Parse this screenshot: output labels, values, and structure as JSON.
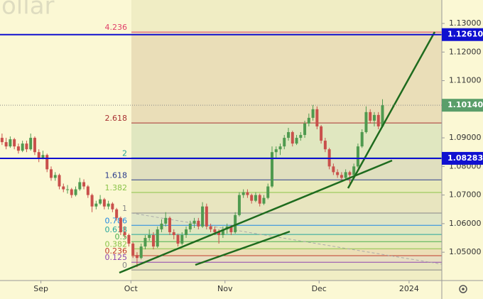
{
  "chart_data": {
    "type": "candlestick",
    "watermark": "ollar",
    "up_color": "#4f9a4f",
    "down_color": "#c9504b",
    "xlim": [
      0,
      108
    ],
    "xticks": [
      {
        "value": 10,
        "label": "Sep"
      },
      {
        "value": 32,
        "label": "Oct"
      },
      {
        "value": 55,
        "label": "Nov"
      },
      {
        "value": 78,
        "label": "Dec"
      },
      {
        "value": 100,
        "label": "2024"
      }
    ],
    "ylim": [
      1.0401,
      1.1382
    ],
    "yticks": [
      {
        "value": 1.05,
        "label": "1.05000"
      },
      {
        "value": 1.06,
        "label": "1.06000"
      },
      {
        "value": 1.07,
        "label": "1.07000"
      },
      {
        "value": 1.08,
        "label": "1.08000"
      },
      {
        "value": 1.09,
        "label": "1.09000"
      },
      {
        "value": 1.1,
        "label": "1.10000"
      },
      {
        "value": 1.11,
        "label": "1.11000"
      },
      {
        "value": 1.12,
        "label": "1.12000"
      },
      {
        "value": 1.13,
        "label": "1.13000"
      }
    ],
    "candles": [
      [
        1.09,
        1.0915,
        1.0875,
        1.0885
      ],
      [
        1.0885,
        1.09,
        1.086,
        1.087
      ],
      [
        1.087,
        1.0905,
        1.0865,
        1.0895
      ],
      [
        1.0895,
        1.09,
        1.086,
        1.087
      ],
      [
        1.087,
        1.088,
        1.0845,
        1.0855
      ],
      [
        1.0855,
        1.089,
        1.085,
        1.088
      ],
      [
        1.088,
        1.089,
        1.085,
        1.086
      ],
      [
        1.086,
        1.0915,
        1.0855,
        1.09
      ],
      [
        1.09,
        1.0905,
        1.084,
        1.085
      ],
      [
        1.085,
        1.086,
        1.0815,
        1.083
      ],
      [
        1.083,
        1.0855,
        1.0825,
        1.084
      ],
      [
        1.084,
        1.0845,
        1.078,
        1.079
      ],
      [
        1.079,
        1.08,
        1.075,
        1.076
      ],
      [
        1.076,
        1.078,
        1.075,
        1.077
      ],
      [
        1.077,
        1.0775,
        1.072,
        1.073
      ],
      [
        1.073,
        1.074,
        1.071,
        1.072
      ],
      [
        1.072,
        1.0735,
        1.0705,
        1.072
      ],
      [
        1.072,
        1.0725,
        1.069,
        1.07
      ],
      [
        1.07,
        1.073,
        1.0695,
        1.072
      ],
      [
        1.072,
        1.076,
        1.0715,
        1.0745
      ],
      [
        1.0745,
        1.0755,
        1.072,
        1.073
      ],
      [
        1.073,
        1.0735,
        1.069,
        1.07
      ],
      [
        1.07,
        1.0705,
        1.064,
        1.066
      ],
      [
        1.066,
        1.068,
        1.065,
        1.067
      ],
      [
        1.067,
        1.07,
        1.0665,
        1.0685
      ],
      [
        1.0685,
        1.069,
        1.065,
        1.066
      ],
      [
        1.066,
        1.068,
        1.065,
        1.067
      ],
      [
        1.067,
        1.0675,
        1.064,
        1.065
      ],
      [
        1.065,
        1.0655,
        1.061,
        1.062
      ],
      [
        1.062,
        1.0625,
        1.056,
        1.057
      ],
      [
        1.057,
        1.059,
        1.055,
        1.056
      ],
      [
        1.056,
        1.0565,
        1.052,
        1.053
      ],
      [
        1.053,
        1.0535,
        1.048,
        1.049
      ],
      [
        1.049,
        1.05,
        1.0448,
        1.048
      ],
      [
        1.048,
        1.053,
        1.0475,
        1.052
      ],
      [
        1.052,
        1.056,
        1.051,
        1.055
      ],
      [
        1.055,
        1.058,
        1.054,
        1.056
      ],
      [
        1.056,
        1.057,
        1.051,
        1.052
      ],
      [
        1.052,
        1.059,
        1.0515,
        1.058
      ],
      [
        1.058,
        1.0615,
        1.057,
        1.06
      ],
      [
        1.06,
        1.064,
        1.059,
        1.062
      ],
      [
        1.062,
        1.0625,
        1.056,
        1.057
      ],
      [
        1.057,
        1.058,
        1.0545,
        1.056
      ],
      [
        1.056,
        1.0565,
        1.052,
        1.053
      ],
      [
        1.053,
        1.057,
        1.0525,
        1.056
      ],
      [
        1.056,
        1.059,
        1.055,
        1.058
      ],
      [
        1.058,
        1.061,
        1.057,
        1.06
      ],
      [
        1.06,
        1.062,
        1.0585,
        1.061
      ],
      [
        1.061,
        1.062,
        1.058,
        1.059
      ],
      [
        1.059,
        1.0675,
        1.0585,
        1.066
      ],
      [
        1.066,
        1.067,
        1.058,
        1.059
      ],
      [
        1.059,
        1.06,
        1.057,
        1.058
      ],
      [
        1.058,
        1.059,
        1.056,
        1.057
      ],
      [
        1.057,
        1.058,
        1.053,
        1.056
      ],
      [
        1.056,
        1.059,
        1.055,
        1.058
      ],
      [
        1.058,
        1.06,
        1.0565,
        1.059
      ],
      [
        1.059,
        1.0595,
        1.056,
        1.057
      ],
      [
        1.057,
        1.064,
        1.0565,
        1.063
      ],
      [
        1.063,
        1.071,
        1.0625,
        1.07
      ],
      [
        1.07,
        1.072,
        1.069,
        1.071
      ],
      [
        1.071,
        1.072,
        1.069,
        1.07
      ],
      [
        1.07,
        1.0705,
        1.067,
        1.068
      ],
      [
        1.068,
        1.071,
        1.0675,
        1.07
      ],
      [
        1.07,
        1.0705,
        1.066,
        1.067
      ],
      [
        1.067,
        1.07,
        1.0665,
        1.069
      ],
      [
        1.069,
        1.074,
        1.0685,
        1.073
      ],
      [
        1.073,
        1.087,
        1.0725,
        1.085
      ],
      [
        1.085,
        1.087,
        1.083,
        1.086
      ],
      [
        1.086,
        1.088,
        1.084,
        1.087
      ],
      [
        1.087,
        1.091,
        1.086,
        1.09
      ],
      [
        1.09,
        1.0935,
        1.089,
        1.092
      ],
      [
        1.092,
        1.0925,
        1.087,
        1.088
      ],
      [
        1.088,
        1.091,
        1.0875,
        1.09
      ],
      [
        1.09,
        1.092,
        1.089,
        1.091
      ],
      [
        1.091,
        1.096,
        1.09,
        1.095
      ],
      [
        1.095,
        1.0985,
        1.094,
        1.097
      ],
      [
        1.097,
        1.1015,
        1.096,
        1.1
      ],
      [
        1.1,
        1.101,
        1.093,
        1.094
      ],
      [
        1.094,
        1.0945,
        1.088,
        1.089
      ],
      [
        1.089,
        1.09,
        1.085,
        1.086
      ],
      [
        1.086,
        1.0865,
        1.079,
        1.08
      ],
      [
        1.08,
        1.081,
        1.077,
        1.078
      ],
      [
        1.078,
        1.079,
        1.076,
        1.077
      ],
      [
        1.077,
        1.078,
        1.075,
        1.076
      ],
      [
        1.076,
        1.079,
        1.0755,
        1.078
      ],
      [
        1.078,
        1.0785,
        1.074,
        1.077
      ],
      [
        1.077,
        1.081,
        1.0765,
        1.08
      ],
      [
        1.08,
        1.088,
        1.0795,
        1.087
      ],
      [
        1.087,
        1.093,
        1.0865,
        1.092
      ],
      [
        1.092,
        1.101,
        1.0915,
        1.099
      ],
      [
        1.099,
        1.1,
        1.095,
        1.096
      ],
      [
        1.096,
        1.099,
        1.094,
        1.098
      ],
      [
        1.098,
        1.099,
        1.093,
        1.094
      ],
      [
        1.094,
        1.1035,
        1.0935,
        1.1014
      ]
    ],
    "fib": {
      "levels": [
        4.236,
        2.618,
        2,
        1.618,
        1.382,
        1,
        0.786,
        0.618,
        0.5,
        0.382,
        0.236,
        0.125,
        0
      ],
      "prices": [
        1.127,
        1.0952,
        1.083,
        1.0753,
        1.0709,
        1.0637,
        1.0594,
        1.0562,
        1.0537,
        1.0512,
        1.0488,
        1.0465,
        1.0438
      ],
      "colors": [
        "#e0406a",
        "#a83232",
        "#26a69a",
        "#2a3a8c",
        "#8bc34a",
        "#888888",
        "#1e88e5",
        "#26a69a",
        "#4caf50",
        "#8bc34a",
        "#c0392b",
        "#8e44ad",
        "#888888"
      ]
    },
    "price_lines": [
      {
        "value": 1.1261,
        "label": "1.12610",
        "color": "#1010d0"
      },
      {
        "value": 1.08283,
        "label": "1.08283",
        "color": "#1010d0"
      }
    ],
    "last_price": {
      "value": 1.1014,
      "label": "1.10140",
      "color": "#5a9e6a"
    }
  }
}
